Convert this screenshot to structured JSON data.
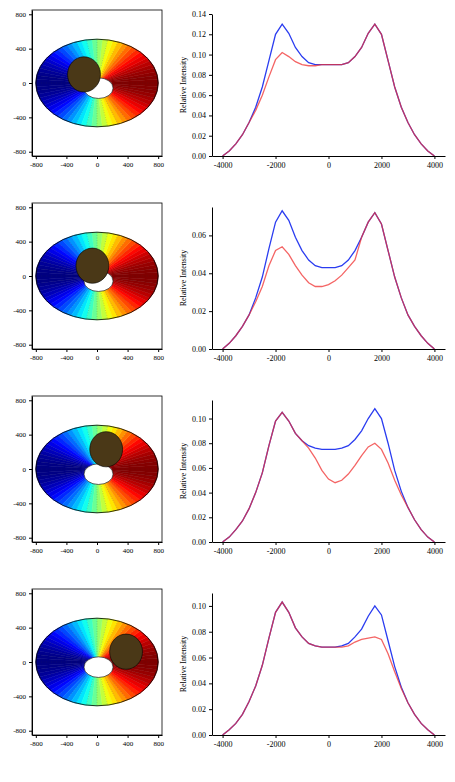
{
  "chart_data": [
    {
      "type": "map",
      "xlim": [
        -850,
        850
      ],
      "ylim": [
        -850,
        850
      ],
      "xticks": [
        -800,
        -400,
        0,
        400,
        800
      ],
      "yticks": [
        -800,
        -400,
        0,
        400,
        800
      ],
      "disk": {
        "rx": 800,
        "ry": 510
      },
      "hole": {
        "x": 20,
        "y": -60,
        "rx": 190,
        "ry": 120
      },
      "spot": {
        "x": -170,
        "y": 100,
        "rx": 215,
        "ry": 205
      }
    },
    {
      "type": "line",
      "ylabel": "Relative Intensity",
      "xlim": [
        -4400,
        4400
      ],
      "ylim": [
        0,
        0.14
      ],
      "xticks": [
        -4000,
        -2000,
        0,
        2000,
        4000
      ],
      "yticks": [
        {
          "value": 0,
          "label": "0.00"
        },
        0.02,
        0.04,
        0.06,
        0.08,
        {
          "value": 0.1,
          "label": "0.10"
        },
        0.12,
        0.14
      ],
      "x": [
        -4000,
        -3750,
        -3500,
        -3250,
        -3000,
        -2750,
        -2500,
        -2250,
        -2000,
        -1750,
        -1500,
        -1250,
        -1000,
        -750,
        -500,
        -250,
        0,
        250,
        500,
        750,
        1000,
        1250,
        1500,
        1750,
        2000,
        2250,
        2500,
        2750,
        3000,
        3250,
        3500,
        3750,
        4000
      ],
      "series": [
        {
          "color": "#2a3cf0",
          "values": [
            0,
            0.005,
            0.012,
            0.021,
            0.033,
            0.048,
            0.068,
            0.094,
            0.12,
            0.13,
            0.121,
            0.107,
            0.098,
            0.092,
            0.09,
            0.09,
            0.09,
            0.09,
            0.09,
            0.092,
            0.098,
            0.107,
            0.121,
            0.13,
            0.12,
            0.094,
            0.068,
            0.048,
            0.033,
            0.021,
            0.012,
            0.005,
            0
          ]
        },
        {
          "color": "#f03030",
          "values": [
            0,
            0.005,
            0.012,
            0.021,
            0.033,
            0.045,
            0.06,
            0.078,
            0.095,
            0.102,
            0.098,
            0.093,
            0.09,
            0.089,
            0.089,
            0.09,
            0.09,
            0.09,
            0.09,
            0.092,
            0.098,
            0.107,
            0.121,
            0.13,
            0.12,
            0.094,
            0.068,
            0.048,
            0.033,
            0.021,
            0.012,
            0.005,
            0
          ]
        }
      ]
    },
    {
      "type": "map",
      "xlim": [
        -850,
        850
      ],
      "ylim": [
        -850,
        850
      ],
      "xticks": [
        -800,
        -400,
        0,
        400,
        800
      ],
      "yticks": [
        -800,
        -400,
        0,
        400,
        800
      ],
      "disk": {
        "rx": 800,
        "ry": 510
      },
      "hole": {
        "x": 20,
        "y": -60,
        "rx": 190,
        "ry": 120
      },
      "spot": {
        "x": -60,
        "y": 120,
        "rx": 215,
        "ry": 205
      }
    },
    {
      "type": "line",
      "ylabel": "Relative Intensity",
      "xlim": [
        -4400,
        4400
      ],
      "ylim": [
        0,
        0.075
      ],
      "xticks": [
        -4000,
        -2000,
        0,
        2000,
        4000
      ],
      "yticks": [
        {
          "value": 0,
          "label": "0.00"
        },
        0.02,
        0.04,
        0.06
      ],
      "x": [
        -4000,
        -3750,
        -3500,
        -3250,
        -3000,
        -2750,
        -2500,
        -2250,
        -2000,
        -1750,
        -1500,
        -1250,
        -1000,
        -750,
        -500,
        -250,
        0,
        250,
        500,
        750,
        1000,
        1250,
        1500,
        1750,
        2000,
        2250,
        2500,
        2750,
        3000,
        3250,
        3500,
        3750,
        4000
      ],
      "series": [
        {
          "color": "#2a3cf0",
          "values": [
            0,
            0.003,
            0.007,
            0.012,
            0.018,
            0.027,
            0.038,
            0.053,
            0.067,
            0.073,
            0.068,
            0.059,
            0.052,
            0.047,
            0.044,
            0.043,
            0.043,
            0.043,
            0.044,
            0.047,
            0.052,
            0.059,
            0.067,
            0.072,
            0.066,
            0.052,
            0.038,
            0.027,
            0.018,
            0.012,
            0.007,
            0.003,
            0
          ]
        },
        {
          "color": "#f03030",
          "values": [
            0,
            0.003,
            0.007,
            0.012,
            0.018,
            0.025,
            0.033,
            0.044,
            0.052,
            0.054,
            0.05,
            0.044,
            0.039,
            0.035,
            0.033,
            0.033,
            0.034,
            0.036,
            0.039,
            0.043,
            0.047,
            0.059,
            0.067,
            0.072,
            0.066,
            0.052,
            0.038,
            0.027,
            0.018,
            0.012,
            0.007,
            0.003,
            0
          ]
        }
      ]
    },
    {
      "type": "map",
      "xlim": [
        -850,
        850
      ],
      "ylim": [
        -850,
        850
      ],
      "xticks": [
        -800,
        -400,
        0,
        400,
        800
      ],
      "yticks": [
        -800,
        -400,
        0,
        400,
        800
      ],
      "disk": {
        "rx": 800,
        "ry": 510
      },
      "hole": {
        "x": 20,
        "y": -60,
        "rx": 190,
        "ry": 120
      },
      "spot": {
        "x": 120,
        "y": 230,
        "rx": 215,
        "ry": 205
      }
    },
    {
      "type": "line",
      "ylabel": "Relative Intensity",
      "xlim": [
        -4400,
        4400
      ],
      "ylim": [
        0,
        0.115
      ],
      "xticks": [
        -4000,
        -2000,
        0,
        2000,
        4000
      ],
      "yticks": [
        {
          "value": 0,
          "label": "0.00"
        },
        0.02,
        0.04,
        0.06,
        0.08,
        {
          "value": 0.1,
          "label": "0.10"
        }
      ],
      "x": [
        -4000,
        -3750,
        -3500,
        -3250,
        -3000,
        -2750,
        -2500,
        -2250,
        -2000,
        -1750,
        -1500,
        -1250,
        -1000,
        -750,
        -500,
        -250,
        0,
        250,
        500,
        750,
        1000,
        1250,
        1500,
        1750,
        2000,
        2250,
        2500,
        2750,
        3000,
        3250,
        3500,
        3750,
        4000
      ],
      "series": [
        {
          "color": "#2a3cf0",
          "values": [
            0,
            0.004,
            0.01,
            0.017,
            0.027,
            0.04,
            0.056,
            0.078,
            0.098,
            0.105,
            0.098,
            0.088,
            0.082,
            0.078,
            0.076,
            0.075,
            0.075,
            0.075,
            0.076,
            0.078,
            0.083,
            0.09,
            0.1,
            0.108,
            0.1,
            0.08,
            0.058,
            0.041,
            0.028,
            0.018,
            0.01,
            0.004,
            0
          ]
        },
        {
          "color": "#f03030",
          "values": [
            0,
            0.004,
            0.01,
            0.017,
            0.027,
            0.04,
            0.056,
            0.078,
            0.098,
            0.105,
            0.098,
            0.088,
            0.082,
            0.076,
            0.068,
            0.058,
            0.051,
            0.048,
            0.05,
            0.055,
            0.062,
            0.07,
            0.077,
            0.08,
            0.075,
            0.064,
            0.05,
            0.038,
            0.028,
            0.018,
            0.01,
            0.004,
            0
          ]
        }
      ]
    },
    {
      "type": "map",
      "xlim": [
        -850,
        850
      ],
      "ylim": [
        -850,
        850
      ],
      "xticks": [
        -800,
        -400,
        0,
        400,
        800
      ],
      "yticks": [
        -800,
        -400,
        0,
        400,
        800
      ],
      "disk": {
        "rx": 800,
        "ry": 510
      },
      "hole": {
        "x": 20,
        "y": -60,
        "rx": 190,
        "ry": 120
      },
      "spot": {
        "x": 380,
        "y": 120,
        "rx": 215,
        "ry": 205
      }
    },
    {
      "type": "line",
      "ylabel": "Relative Intensity",
      "xlim": [
        -4400,
        4400
      ],
      "ylim": [
        0,
        0.11
      ],
      "xticks": [
        -4000,
        -2000,
        0,
        2000,
        4000
      ],
      "yticks": [
        {
          "value": 0,
          "label": "0.00"
        },
        0.02,
        0.04,
        0.06,
        0.08,
        {
          "value": 0.1,
          "label": "0.10"
        }
      ],
      "x": [
        -4000,
        -3750,
        -3500,
        -3250,
        -3000,
        -2750,
        -2500,
        -2250,
        -2000,
        -1750,
        -1500,
        -1250,
        -1000,
        -750,
        -500,
        -250,
        0,
        250,
        500,
        750,
        1000,
        1250,
        1500,
        1750,
        2000,
        2250,
        2500,
        2750,
        3000,
        3250,
        3500,
        3750,
        4000
      ],
      "series": [
        {
          "color": "#2a3cf0",
          "values": [
            0,
            0.004,
            0.009,
            0.016,
            0.026,
            0.038,
            0.054,
            0.075,
            0.095,
            0.103,
            0.095,
            0.083,
            0.076,
            0.071,
            0.069,
            0.068,
            0.068,
            0.068,
            0.069,
            0.071,
            0.076,
            0.082,
            0.092,
            0.1,
            0.093,
            0.073,
            0.053,
            0.037,
            0.025,
            0.016,
            0.009,
            0.004,
            0
          ]
        },
        {
          "color": "#f03030",
          "values": [
            0,
            0.004,
            0.009,
            0.016,
            0.026,
            0.038,
            0.054,
            0.075,
            0.095,
            0.103,
            0.095,
            0.083,
            0.076,
            0.071,
            0.069,
            0.068,
            0.068,
            0.068,
            0.068,
            0.069,
            0.072,
            0.074,
            0.075,
            0.076,
            0.074,
            0.063,
            0.049,
            0.036,
            0.025,
            0.016,
            0.009,
            0.004,
            0
          ]
        }
      ]
    }
  ]
}
